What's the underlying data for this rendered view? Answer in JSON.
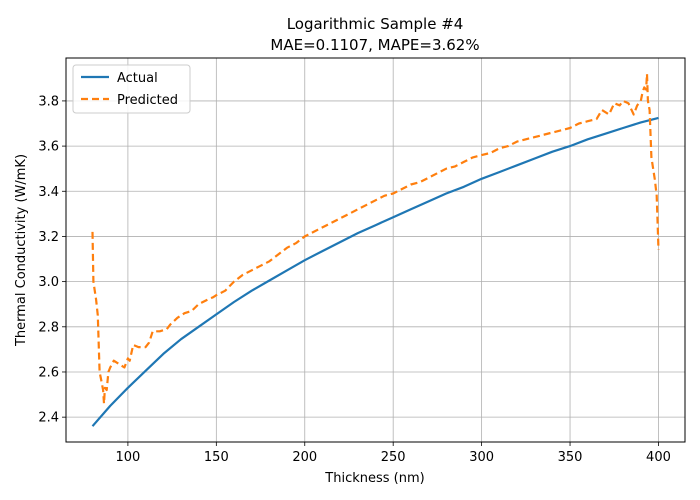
{
  "chart_data": {
    "type": "line",
    "title": "Logarithmic Sample #4",
    "subtitle": "MAE=0.1107, MAPE=3.62%",
    "xlabel": "Thickness (nm)",
    "ylabel": "Thermal Conductivity (W/mK)",
    "xlim": [
      65,
      415
    ],
    "ylim": [
      2.29,
      3.99
    ],
    "x_ticks": [
      100,
      150,
      200,
      250,
      300,
      350,
      400
    ],
    "y_ticks": [
      2.4,
      2.6,
      2.8,
      3.0,
      3.2,
      3.4,
      3.6,
      3.8
    ],
    "x_tick_labels": [
      "100",
      "150",
      "200",
      "250",
      "300",
      "350",
      "400"
    ],
    "y_tick_labels": [
      "2.4",
      "2.6",
      "2.8",
      "3.0",
      "3.2",
      "3.4",
      "3.6",
      "3.8"
    ],
    "grid": true,
    "legend_position": "top-left",
    "series": [
      {
        "name": "Actual",
        "color": "#1f77b4",
        "style": "solid",
        "x": [
          80,
          90,
          100,
          110,
          120,
          130,
          140,
          150,
          160,
          170,
          180,
          190,
          200,
          210,
          220,
          230,
          240,
          250,
          260,
          270,
          280,
          290,
          300,
          310,
          320,
          330,
          340,
          350,
          360,
          370,
          380,
          390,
          400
        ],
        "y": [
          2.36,
          2.45,
          2.53,
          2.605,
          2.68,
          2.745,
          2.8,
          2.855,
          2.91,
          2.96,
          3.005,
          3.05,
          3.095,
          3.135,
          3.175,
          3.215,
          3.25,
          3.285,
          3.32,
          3.355,
          3.39,
          3.42,
          3.455,
          3.485,
          3.515,
          3.545,
          3.575,
          3.6,
          3.63,
          3.655,
          3.68,
          3.705,
          3.725
        ]
      },
      {
        "name": "Predicted",
        "color": "#ff7f0e",
        "style": "dashed",
        "x": [
          80,
          80.5,
          82,
          83,
          84,
          85,
          86,
          86.5,
          87,
          88,
          89,
          90,
          92,
          94,
          96,
          98,
          100,
          101,
          103,
          106,
          110,
          112,
          114,
          118,
          122,
          124,
          128,
          132,
          136,
          140,
          145,
          148,
          150,
          155,
          160,
          165,
          170,
          175,
          180,
          185,
          190,
          195,
          200,
          205,
          210,
          215,
          220,
          225,
          230,
          235,
          240,
          245,
          250,
          255,
          260,
          265,
          270,
          275,
          280,
          285,
          290,
          295,
          300,
          305,
          310,
          315,
          320,
          325,
          330,
          335,
          340,
          345,
          350,
          355,
          360,
          365,
          368,
          372,
          375,
          378,
          380,
          383,
          386,
          388,
          390,
          391,
          392,
          393,
          393.5,
          394,
          395,
          396,
          398,
          399,
          400
        ],
        "y": [
          3.22,
          3.0,
          2.92,
          2.85,
          2.6,
          2.56,
          2.52,
          2.46,
          2.53,
          2.52,
          2.6,
          2.62,
          2.65,
          2.64,
          2.63,
          2.62,
          2.66,
          2.65,
          2.72,
          2.71,
          2.71,
          2.73,
          2.78,
          2.78,
          2.79,
          2.81,
          2.84,
          2.86,
          2.87,
          2.9,
          2.92,
          2.93,
          2.94,
          2.96,
          3.0,
          3.03,
          3.05,
          3.07,
          3.09,
          3.12,
          3.15,
          3.17,
          3.2,
          3.22,
          3.24,
          3.26,
          3.28,
          3.3,
          3.32,
          3.34,
          3.36,
          3.38,
          3.39,
          3.41,
          3.43,
          3.44,
          3.46,
          3.48,
          3.5,
          3.51,
          3.53,
          3.55,
          3.56,
          3.57,
          3.59,
          3.6,
          3.62,
          3.63,
          3.64,
          3.65,
          3.66,
          3.67,
          3.68,
          3.7,
          3.71,
          3.72,
          3.76,
          3.74,
          3.79,
          3.78,
          3.8,
          3.79,
          3.74,
          3.78,
          3.8,
          3.84,
          3.86,
          3.85,
          3.92,
          3.8,
          3.76,
          3.55,
          3.45,
          3.38,
          3.14
        ]
      }
    ]
  }
}
